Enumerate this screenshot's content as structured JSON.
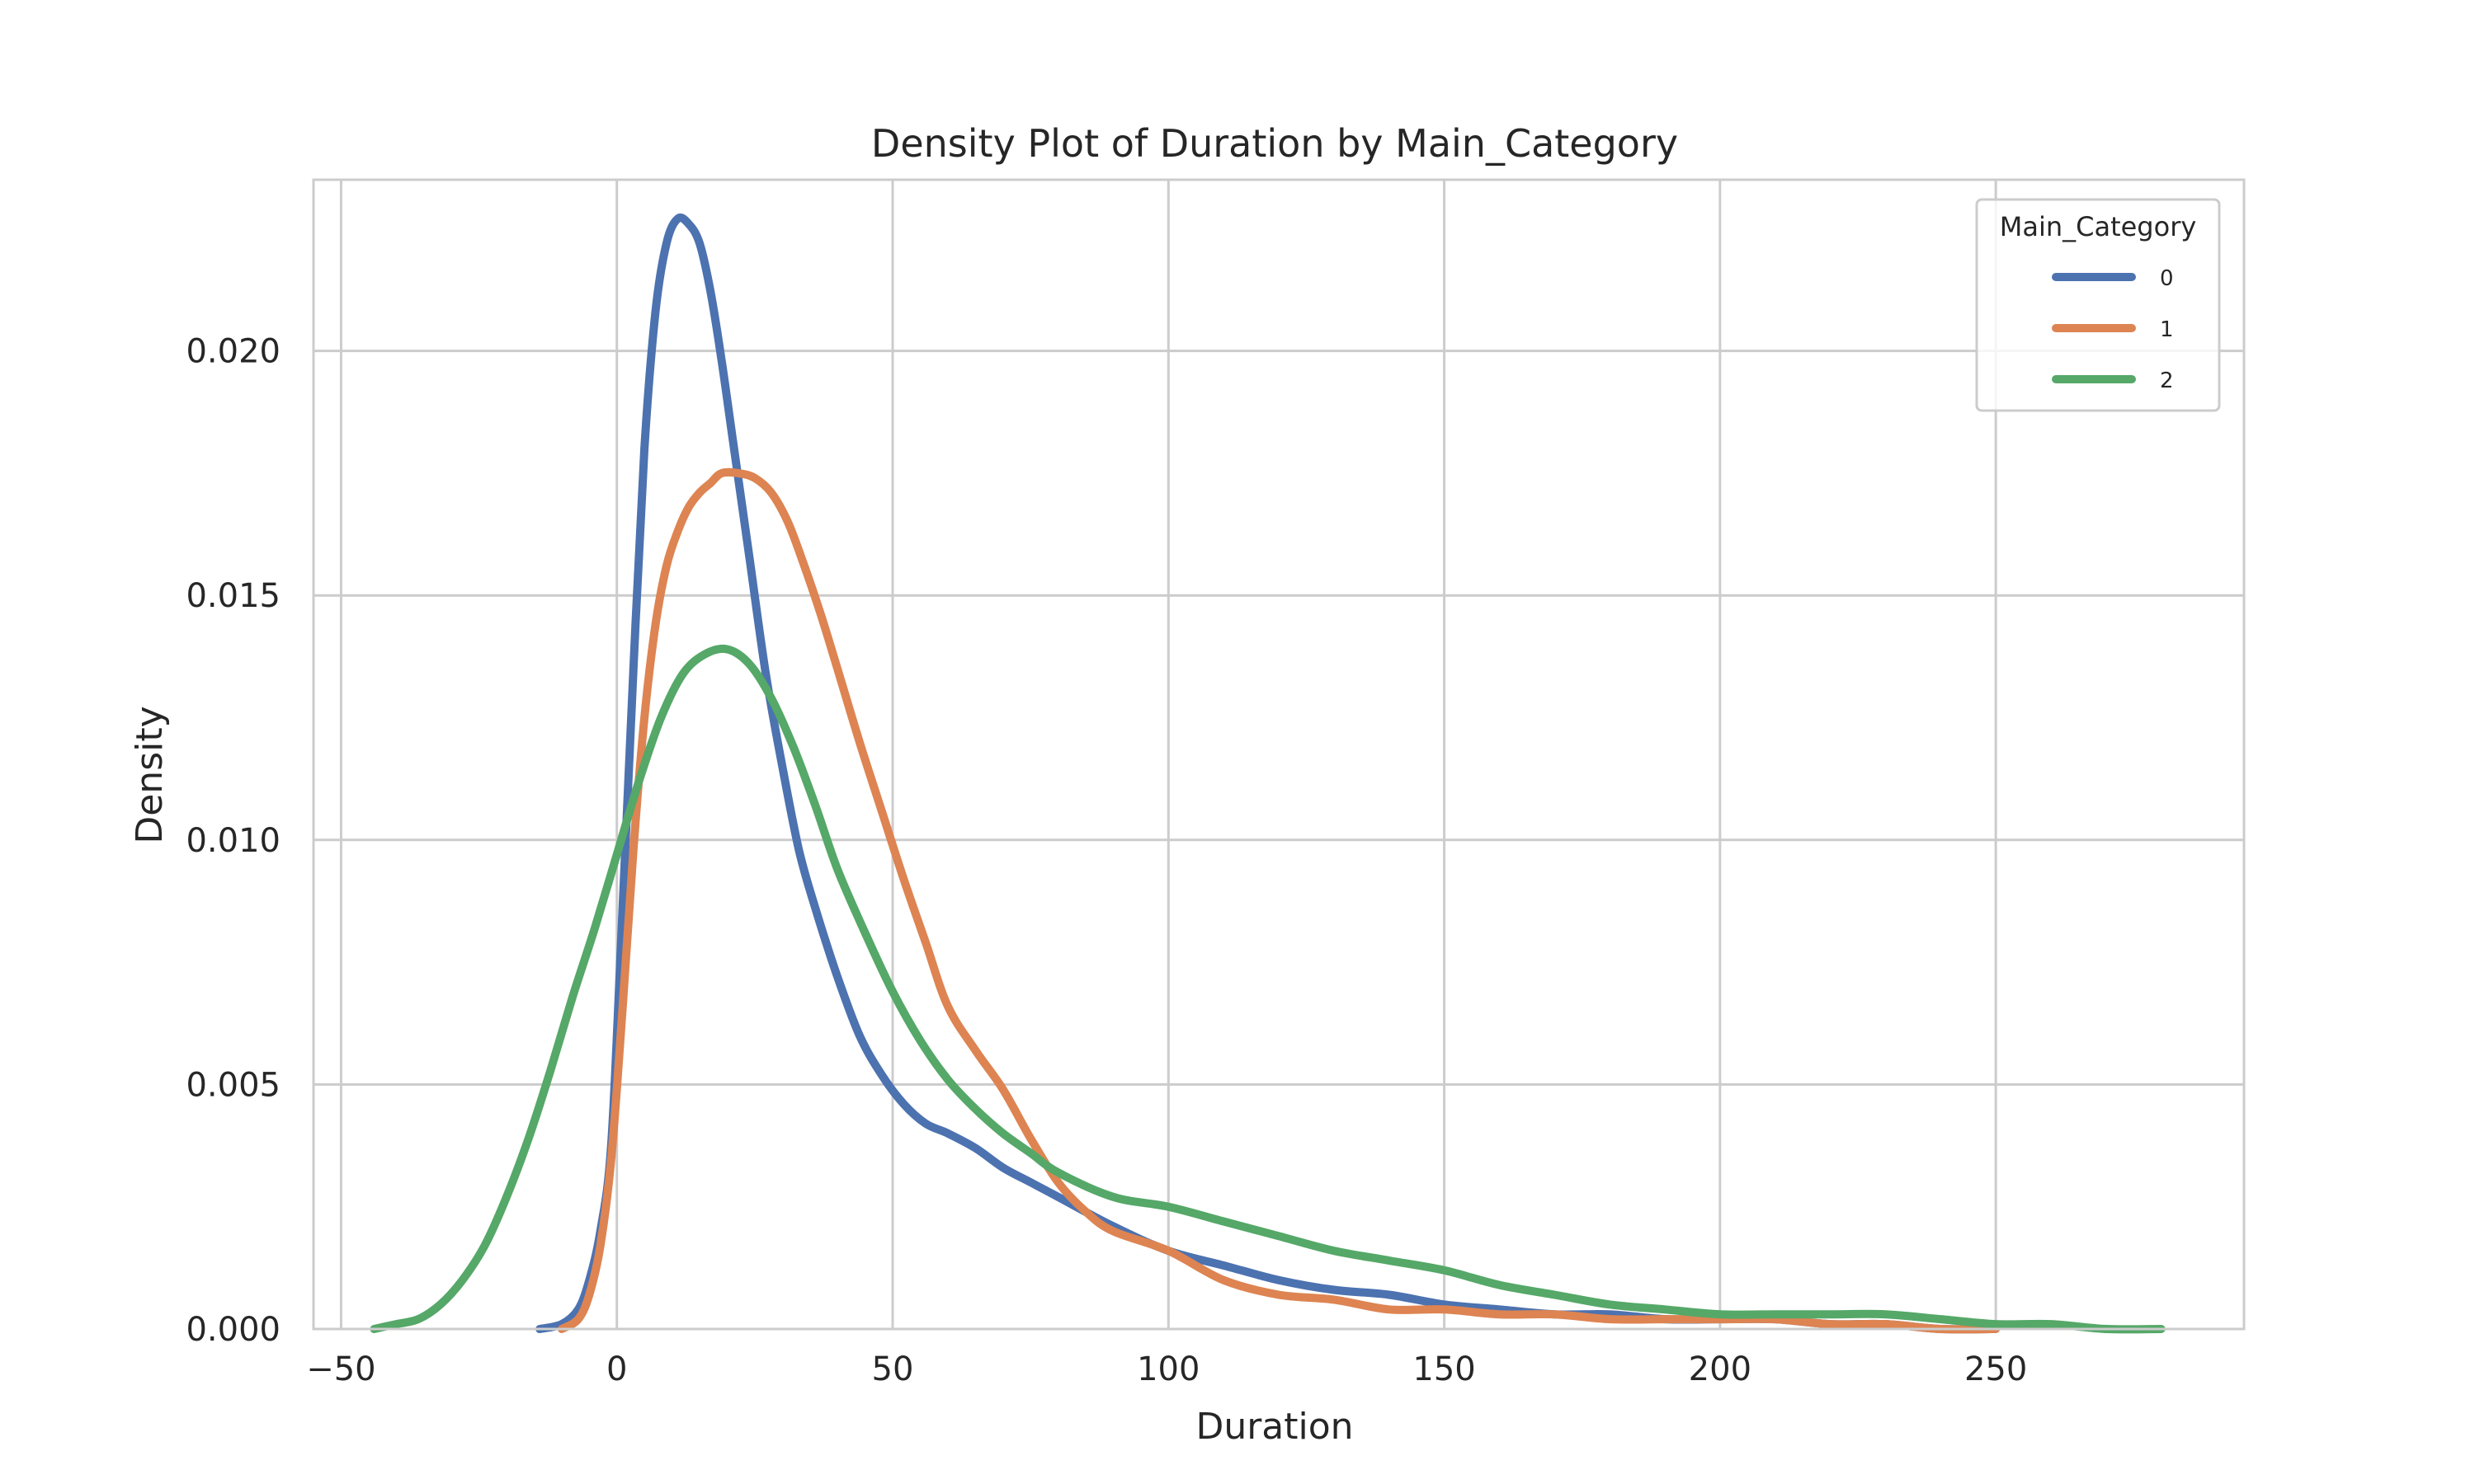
{
  "chart_data": {
    "type": "line",
    "title": "Density Plot of Duration by Main_Category",
    "xlabel": "Duration",
    "ylabel": "Density",
    "xlim": [
      -55,
      295
    ],
    "ylim": [
      0,
      0.0235
    ],
    "xticks": [
      -50,
      0,
      50,
      100,
      150,
      200,
      250
    ],
    "xtick_labels": [
      "−50",
      "0",
      "50",
      "100",
      "150",
      "200",
      "250"
    ],
    "yticks": [
      0,
      0.005,
      0.01,
      0.015,
      0.02
    ],
    "ytick_labels": [
      "0.000",
      "0.005",
      "0.010",
      "0.015",
      "0.020"
    ],
    "grid": true,
    "legend": {
      "title": "Main_Category",
      "placement": "top-right"
    },
    "series": [
      {
        "name": "0",
        "color": "#4c72b0",
        "x": [
          -14,
          -10,
          -7,
          -5,
          -3,
          -1,
          1,
          3,
          5,
          7,
          9,
          11,
          13,
          15,
          17,
          19,
          21,
          24,
          27,
          30,
          33,
          36,
          40,
          44,
          48,
          52,
          56,
          60,
          65,
          70,
          75,
          80,
          90,
          100,
          110,
          120,
          130,
          140,
          150,
          160,
          170,
          180,
          190,
          200,
          210,
          220,
          230,
          240,
          250
        ],
        "y": [
          0.0,
          0.0001,
          0.0004,
          0.001,
          0.002,
          0.0038,
          0.0085,
          0.0135,
          0.018,
          0.0208,
          0.0222,
          0.0227,
          0.0226,
          0.0222,
          0.0212,
          0.0198,
          0.0182,
          0.0158,
          0.0134,
          0.0115,
          0.0098,
          0.0086,
          0.0072,
          0.006,
          0.0052,
          0.0046,
          0.0042,
          0.004,
          0.0037,
          0.0033,
          0.003,
          0.0027,
          0.0021,
          0.0016,
          0.0013,
          0.001,
          0.0008,
          0.0007,
          0.0005,
          0.0004,
          0.0003,
          0.0003,
          0.0002,
          0.0002,
          0.0002,
          0.0001,
          0.0001,
          0.0,
          0.0
        ]
      },
      {
        "name": "1",
        "color": "#dd8452",
        "x": [
          -10,
          -7,
          -5,
          -3,
          -1,
          1,
          3,
          5,
          7,
          9,
          11,
          13,
          15,
          17,
          19,
          22,
          25,
          28,
          31,
          34,
          37,
          40,
          44,
          48,
          52,
          56,
          60,
          65,
          70,
          75,
          80,
          85,
          90,
          100,
          110,
          120,
          130,
          140,
          150,
          160,
          170,
          180,
          190,
          200,
          210,
          220,
          230,
          240,
          250
        ],
        "y": [
          0.0,
          0.0002,
          0.0007,
          0.0017,
          0.0035,
          0.0065,
          0.0098,
          0.0125,
          0.0144,
          0.0156,
          0.0163,
          0.0168,
          0.0171,
          0.0173,
          0.0175,
          0.0175,
          0.0174,
          0.0171,
          0.0165,
          0.0156,
          0.0146,
          0.0135,
          0.012,
          0.0106,
          0.0092,
          0.0079,
          0.0066,
          0.0057,
          0.0049,
          0.0039,
          0.003,
          0.0024,
          0.002,
          0.0016,
          0.001,
          0.0007,
          0.0006,
          0.0004,
          0.0004,
          0.0003,
          0.0003,
          0.0002,
          0.0002,
          0.0002,
          0.0002,
          0.0001,
          0.0001,
          0.0,
          0.0
        ]
      },
      {
        "name": "2",
        "color": "#55a868",
        "x": [
          -44,
          -40,
          -36,
          -32,
          -28,
          -24,
          -20,
          -16,
          -12,
          -8,
          -4,
          0,
          4,
          8,
          12,
          16,
          20,
          24,
          28,
          32,
          36,
          40,
          45,
          50,
          55,
          60,
          65,
          70,
          75,
          80,
          90,
          100,
          110,
          120,
          130,
          140,
          150,
          160,
          170,
          180,
          190,
          200,
          210,
          220,
          230,
          240,
          250,
          260,
          270,
          280
        ],
        "y": [
          0.0,
          0.0001,
          0.0002,
          0.0005,
          0.001,
          0.0017,
          0.0027,
          0.0039,
          0.0053,
          0.0068,
          0.0082,
          0.0097,
          0.0112,
          0.0125,
          0.0134,
          0.0138,
          0.0139,
          0.0136,
          0.0129,
          0.0119,
          0.0107,
          0.0094,
          0.0081,
          0.0069,
          0.0059,
          0.0051,
          0.0045,
          0.004,
          0.0036,
          0.0032,
          0.0027,
          0.0025,
          0.0022,
          0.0019,
          0.0016,
          0.0014,
          0.0012,
          0.0009,
          0.0007,
          0.0005,
          0.0004,
          0.0003,
          0.0003,
          0.0003,
          0.0003,
          0.0002,
          0.0001,
          0.0001,
          0.0,
          0.0
        ]
      }
    ]
  }
}
